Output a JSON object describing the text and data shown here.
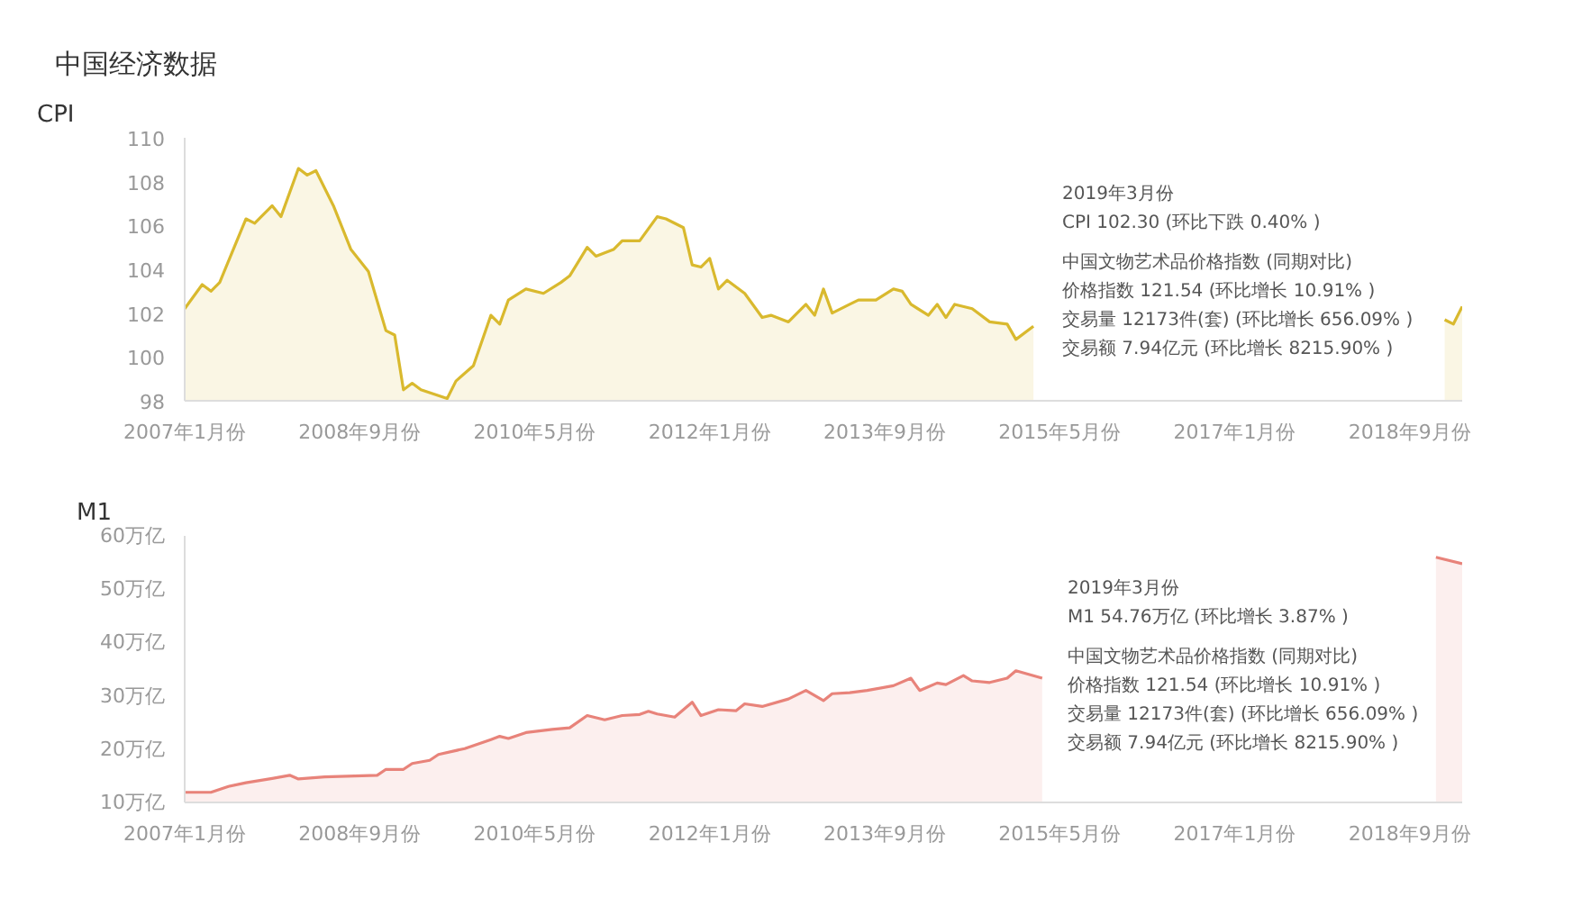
{
  "chart_data": [
    {
      "type": "area",
      "title": "中国经济数据",
      "ylabel": "CPI",
      "xlim": [
        "2007-01",
        "2019-03"
      ],
      "ylim": [
        98,
        110
      ],
      "yticks": [
        98,
        100,
        102,
        104,
        106,
        108,
        110
      ],
      "xticks": [
        {
          "value": "2007-01",
          "label": "2007年1月份"
        },
        {
          "value": "2008-09",
          "label": "2008年9月份"
        },
        {
          "value": "2010-05",
          "label": "2010年5月份"
        },
        {
          "value": "2012-01",
          "label": "2012年1月份"
        },
        {
          "value": "2013-09",
          "label": "2013年9月份"
        },
        {
          "value": "2015-05",
          "label": "2015年5月份"
        },
        {
          "value": "2017-01",
          "label": "2017年1月份"
        },
        {
          "value": "2018-09",
          "label": "2018年9月份"
        }
      ],
      "grid": false,
      "x": [
        "2007-01",
        "2007-03",
        "2007-04",
        "2007-05",
        "2007-08",
        "2007-09",
        "2007-11",
        "2007-12",
        "2008-02",
        "2008-03",
        "2008-04",
        "2008-06",
        "2008-08",
        "2008-10",
        "2008-12",
        "2009-01",
        "2009-02",
        "2009-03",
        "2009-04",
        "2009-07",
        "2009-08",
        "2009-10",
        "2009-12",
        "2010-01",
        "2010-02",
        "2010-04",
        "2010-06",
        "2010-08",
        "2010-09",
        "2010-11",
        "2010-12",
        "2011-02",
        "2011-03",
        "2011-05",
        "2011-07",
        "2011-08",
        "2011-10",
        "2011-11",
        "2011-12",
        "2012-01",
        "2012-02",
        "2012-03",
        "2012-05",
        "2012-07",
        "2012-08",
        "2012-10",
        "2012-12",
        "2013-01",
        "2013-02",
        "2013-03",
        "2013-05",
        "2013-06",
        "2013-08",
        "2013-10",
        "2013-11",
        "2013-12",
        "2014-02",
        "2014-03",
        "2014-04",
        "2014-05",
        "2014-07",
        "2014-09",
        "2014-11",
        "2014-12",
        "2015-02",
        "2016-06",
        "2019-01",
        "2019-02",
        "2019-03"
      ],
      "series": [
        {
          "color": "#d9b92e",
          "values": [
            102.2,
            103.3,
            103.0,
            103.4,
            106.3,
            106.1,
            106.9,
            106.4,
            108.6,
            108.3,
            108.5,
            106.9,
            104.9,
            103.9,
            101.2,
            101.0,
            98.5,
            98.8,
            98.5,
            98.1,
            98.9,
            99.6,
            101.9,
            101.5,
            102.6,
            103.1,
            102.9,
            103.4,
            103.7,
            105.0,
            104.6,
            104.9,
            105.3,
            105.3,
            106.4,
            106.3,
            105.9,
            104.2,
            104.1,
            104.5,
            103.1,
            103.5,
            102.9,
            101.8,
            101.9,
            101.6,
            102.4,
            101.9,
            103.1,
            102.0,
            102.4,
            102.6,
            102.6,
            103.1,
            103.0,
            102.4,
            101.9,
            102.4,
            101.8,
            102.4,
            102.2,
            101.6,
            101.5,
            100.8,
            101.4,
            null,
            101.7,
            101.5,
            102.3
          ]
        }
      ],
      "annotations": [
        "2019年3月份",
        "CPI 102.30 (环比下跌 0.40% )",
        "中国文物艺术品价格指数 (同期对比)",
        "价格指数 121.54 (环比增长 10.91% )",
        "交易量 12173件(套) (环比增长 656.09% )",
        "交易额 7.94亿元 (环比增长 8215.90% )"
      ]
    },
    {
      "type": "area",
      "ylabel": "M1",
      "xlim": [
        "2007-01",
        "2019-03"
      ],
      "ylim": [
        10,
        60
      ],
      "yticks": [
        {
          "value": 10,
          "label": "10万亿"
        },
        {
          "value": 20,
          "label": "20万亿"
        },
        {
          "value": 30,
          "label": "30万亿"
        },
        {
          "value": 40,
          "label": "40万亿"
        },
        {
          "value": 50,
          "label": "50万亿"
        },
        {
          "value": 60,
          "label": "60万亿"
        }
      ],
      "xticks": [
        {
          "value": "2007-01",
          "label": "2007年1月份"
        },
        {
          "value": "2008-09",
          "label": "2008年9月份"
        },
        {
          "value": "2010-05",
          "label": "2010年5月份"
        },
        {
          "value": "2012-01",
          "label": "2012年1月份"
        },
        {
          "value": "2013-09",
          "label": "2013年9月份"
        },
        {
          "value": "2015-05",
          "label": "2015年5月份"
        },
        {
          "value": "2017-01",
          "label": "2017年1月份"
        },
        {
          "value": "2018-09",
          "label": "2018年9月份"
        }
      ],
      "grid": false,
      "x": [
        "2007-01",
        "2007-04",
        "2007-06",
        "2007-08",
        "2007-11",
        "2008-01",
        "2008-02",
        "2008-05",
        "2008-11",
        "2008-12",
        "2009-02",
        "2009-03",
        "2009-05",
        "2009-06",
        "2009-09",
        "2009-12",
        "2010-01",
        "2010-02",
        "2010-04",
        "2010-07",
        "2010-09",
        "2010-11",
        "2011-01",
        "2011-03",
        "2011-05",
        "2011-06",
        "2011-07",
        "2011-09",
        "2011-10",
        "2011-11",
        "2011-12",
        "2012-02",
        "2012-04",
        "2012-05",
        "2012-07",
        "2012-10",
        "2012-12",
        "2013-02",
        "2013-03",
        "2013-05",
        "2013-07",
        "2013-10",
        "2013-12",
        "2014-01",
        "2014-03",
        "2014-04",
        "2014-06",
        "2014-07",
        "2014-09",
        "2014-11",
        "2014-12",
        "2015-03",
        "2016-06",
        "2018-12",
        "2019-03"
      ],
      "series": [
        {
          "color": "#e8837a",
          "values": [
            11.9,
            11.9,
            13.0,
            13.7,
            14.5,
            15.1,
            14.4,
            14.8,
            15.1,
            16.2,
            16.2,
            17.3,
            17.9,
            19.0,
            20.1,
            21.8,
            22.4,
            22.0,
            23.1,
            23.7,
            24.0,
            26.3,
            25.5,
            26.3,
            26.5,
            27.1,
            26.6,
            26.0,
            27.4,
            28.8,
            26.3,
            27.4,
            27.2,
            28.5,
            28.0,
            29.4,
            31.0,
            29.1,
            30.4,
            30.6,
            31.0,
            31.9,
            33.3,
            31.0,
            32.4,
            32.1,
            33.8,
            32.8,
            32.5,
            33.3,
            34.7,
            33.3,
            null,
            56.0,
            54.76
          ]
        }
      ],
      "annotations": [
        "2019年3月份",
        "M1 54.76万亿 (环比增长 3.87% )",
        "中国文物艺术品价格指数 (同期对比)",
        "价格指数 121.54 (环比增长 10.91% )",
        "交易量 12173件(套) (环比增长 656.09% )",
        "交易额 7.94亿元 (环比增长 8215.90% )"
      ]
    }
  ]
}
